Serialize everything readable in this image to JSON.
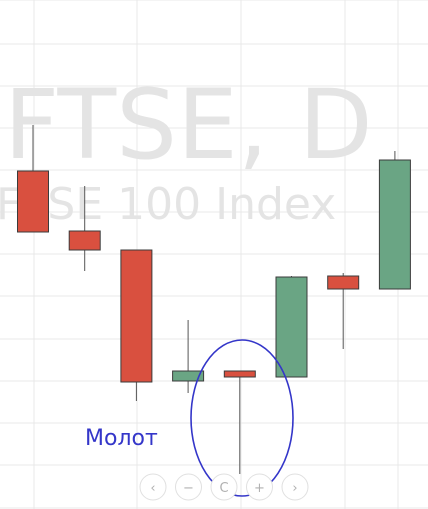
{
  "chart_data": {
    "type": "candlestick",
    "title": "FTSE, D",
    "subtitle": "FTSE 100 Index",
    "xlabel": "",
    "ylabel": "",
    "grid": true,
    "ylim": [
      0,
      509
    ],
    "candles": [
      {
        "open": 338,
        "close": 277,
        "high": 384,
        "low": 277
      },
      {
        "open": 278,
        "close": 259,
        "high": 323,
        "low": 238
      },
      {
        "open": 259,
        "close": 127,
        "high": 259,
        "low": 108
      },
      {
        "open": 128,
        "close": 138,
        "high": 189,
        "low": 116
      },
      {
        "open": 138,
        "close": 132,
        "high": 138,
        "low": 35
      },
      {
        "open": 132,
        "close": 232,
        "high": 233,
        "low": 132
      },
      {
        "open": 233,
        "close": 220,
        "high": 236,
        "low": 160
      },
      {
        "open": 220,
        "close": 349,
        "high": 358,
        "low": 220
      }
    ],
    "annotation": {
      "label": "Молот",
      "target_index": 4
    },
    "colors": {
      "up": "#6aa584",
      "down": "#d9503f",
      "annotation": "#3436c9"
    }
  },
  "nav": {
    "buttons": [
      {
        "name": "scroll-left-button",
        "icon": "chevron-left-icon",
        "glyph": "‹"
      },
      {
        "name": "zoom-out-button",
        "icon": "minus-icon",
        "glyph": "−"
      },
      {
        "name": "reset-button",
        "icon": "reset-icon",
        "glyph": "C"
      },
      {
        "name": "zoom-in-button",
        "icon": "plus-icon",
        "glyph": "+"
      },
      {
        "name": "scroll-right-button",
        "icon": "chevron-right-icon",
        "glyph": "›"
      }
    ]
  }
}
